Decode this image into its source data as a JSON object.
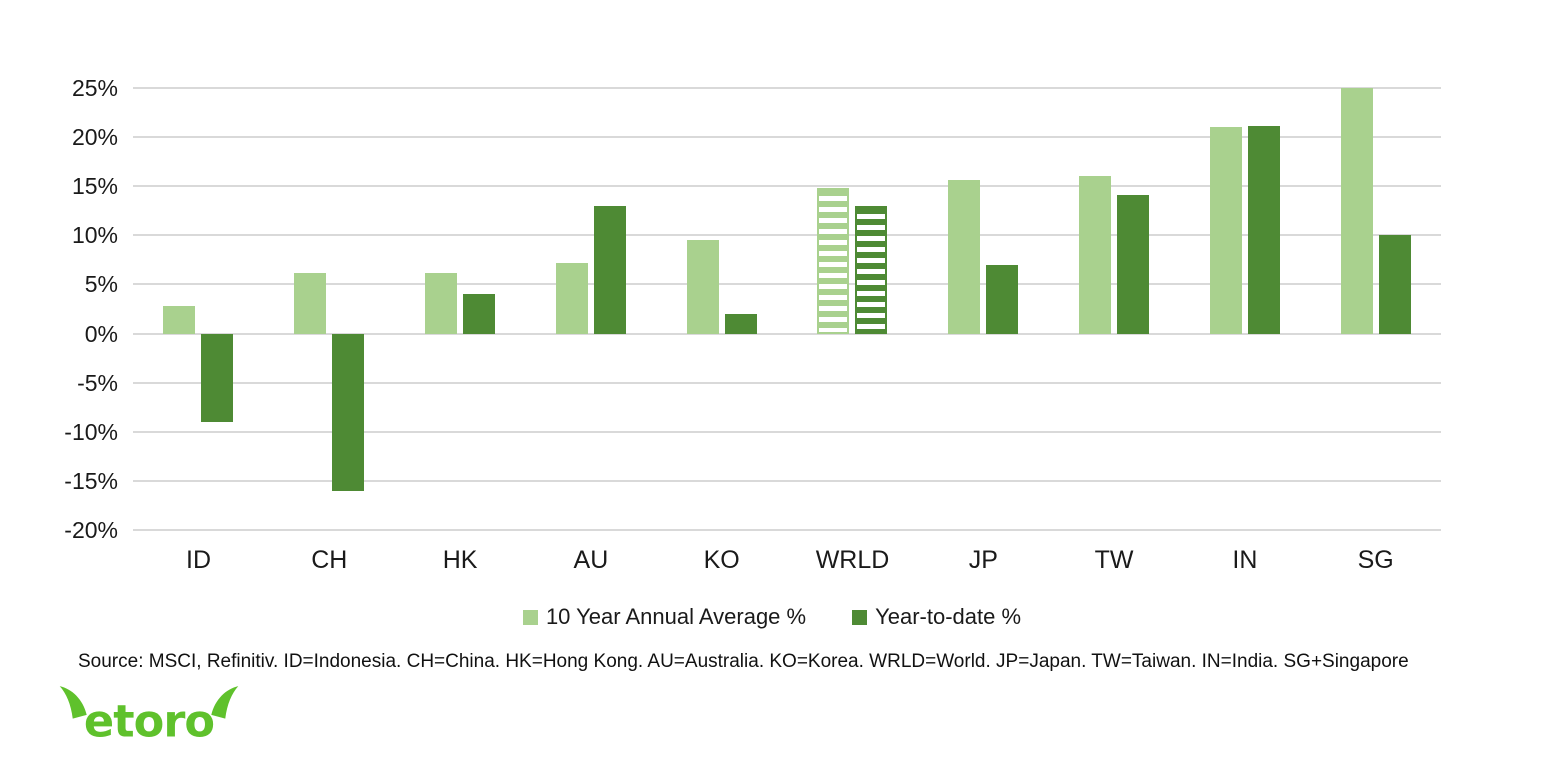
{
  "chart_data": {
    "type": "bar",
    "title": "",
    "xlabel": "",
    "ylabel": "",
    "categories": [
      "ID",
      "CH",
      "HK",
      "AU",
      "KO",
      "WRLD",
      "JP",
      "TW",
      "IN",
      "SG"
    ],
    "series": [
      {
        "name": "10 Year Annual Average %",
        "color": "#a9d18e",
        "values": [
          2.8,
          6.2,
          6.2,
          7.2,
          9.5,
          14.8,
          15.6,
          16.0,
          21.0,
          25.0
        ]
      },
      {
        "name": "Year-to-date %",
        "color": "#4e8a34",
        "values": [
          -9.0,
          -16.0,
          4.0,
          13.0,
          2.0,
          13.0,
          7.0,
          14.1,
          21.1,
          10.0
        ]
      }
    ],
    "hatched_category": "WRLD",
    "y_ticks": [
      "25%",
      "20%",
      "15%",
      "10%",
      "5%",
      "0%",
      "-5%",
      "-10%",
      "-15%",
      "-20%"
    ],
    "y_tick_values": [
      25,
      20,
      15,
      10,
      5,
      0,
      -5,
      -10,
      -15,
      -20
    ],
    "ylim": [
      -20,
      25
    ],
    "grid": true,
    "legend_position": "bottom"
  },
  "legend": {
    "items": [
      {
        "label": "10 Year Annual Average %",
        "color": "#a9d18e"
      },
      {
        "label": "Year-to-date %",
        "color": "#4e8a34"
      }
    ]
  },
  "footer": {
    "source_text": "Source: MSCI, Refinitiv. ID=Indonesia. CH=China. HK=Hong Kong. AU=Australia. KO=Korea. WRLD=World. JP=Japan. TW=Taiwan. IN=India. SG+Singapore",
    "logo_text": "etoro"
  },
  "colors": {
    "light_green": "#a9d18e",
    "dark_green": "#4e8a34",
    "gridline": "#d9d9d9",
    "logo_green": "#5fc12c",
    "text": "#000000"
  }
}
